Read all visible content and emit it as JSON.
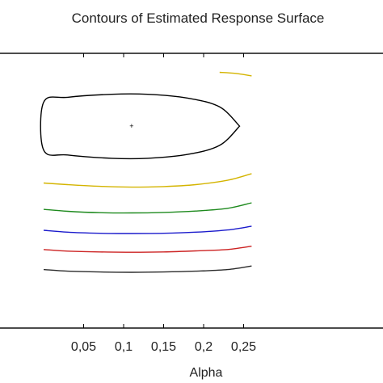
{
  "chart_data": {
    "type": "contour",
    "title": "Contours of Estimated Response Surface",
    "xlabel": "Alpha",
    "ylabel": "",
    "x_ticks": [
      "0,05",
      "0,1",
      "0,15",
      "0,2",
      "0,25"
    ],
    "x_tick_values": [
      0.05,
      0.1,
      0.15,
      0.2,
      0.25
    ],
    "xlim": [
      0.0,
      0.26
    ],
    "ylim": [
      0,
      1
    ],
    "optimum_marker": {
      "x": 0.11,
      "y": 0.735,
      "symbol": "+"
    },
    "contours": [
      {
        "level": 1,
        "color": "#000000",
        "shape": "closed-ellipse",
        "points": [
          [
            0.245,
            0.735
          ],
          [
            0.22,
            0.805
          ],
          [
            0.18,
            0.837
          ],
          [
            0.13,
            0.851
          ],
          [
            0.085,
            0.851
          ],
          [
            0.03,
            0.84
          ],
          [
            0.0,
            0.822
          ],
          [
            0.0,
            0.648
          ],
          [
            0.03,
            0.63
          ],
          [
            0.085,
            0.618
          ],
          [
            0.13,
            0.618
          ],
          [
            0.18,
            0.632
          ],
          [
            0.22,
            0.665
          ],
          [
            0.245,
            0.735
          ]
        ]
      },
      {
        "level": 2,
        "color": "#d4b400",
        "points": [
          [
            0.0,
            0.528
          ],
          [
            0.03,
            0.522
          ],
          [
            0.07,
            0.516
          ],
          [
            0.11,
            0.513
          ],
          [
            0.15,
            0.515
          ],
          [
            0.19,
            0.522
          ],
          [
            0.23,
            0.538
          ],
          [
            0.26,
            0.562
          ]
        ]
      },
      {
        "level": 2,
        "color": "#d4b400",
        "note": "upper-right arc",
        "points": [
          [
            0.22,
            0.931
          ],
          [
            0.24,
            0.927
          ],
          [
            0.26,
            0.918
          ]
        ]
      },
      {
        "level": 3,
        "color": "#1e8a1e",
        "points": [
          [
            0.0,
            0.432
          ],
          [
            0.03,
            0.425
          ],
          [
            0.07,
            0.42
          ],
          [
            0.11,
            0.419
          ],
          [
            0.15,
            0.421
          ],
          [
            0.19,
            0.426
          ],
          [
            0.23,
            0.436
          ],
          [
            0.26,
            0.456
          ]
        ]
      },
      {
        "level": 4,
        "color": "#1a1acc",
        "points": [
          [
            0.0,
            0.356
          ],
          [
            0.03,
            0.349
          ],
          [
            0.07,
            0.345
          ],
          [
            0.11,
            0.344
          ],
          [
            0.15,
            0.345
          ],
          [
            0.19,
            0.349
          ],
          [
            0.23,
            0.357
          ],
          [
            0.26,
            0.371
          ]
        ]
      },
      {
        "level": 5,
        "color": "#cc2222",
        "points": [
          [
            0.0,
            0.286
          ],
          [
            0.03,
            0.28
          ],
          [
            0.07,
            0.277
          ],
          [
            0.11,
            0.276
          ],
          [
            0.15,
            0.277
          ],
          [
            0.19,
            0.281
          ],
          [
            0.23,
            0.286
          ],
          [
            0.26,
            0.298
          ]
        ]
      },
      {
        "level": 6,
        "color": "#2b2b2b",
        "points": [
          [
            0.0,
            0.213
          ],
          [
            0.03,
            0.207
          ],
          [
            0.07,
            0.204
          ],
          [
            0.11,
            0.203
          ],
          [
            0.15,
            0.204
          ],
          [
            0.19,
            0.207
          ],
          [
            0.23,
            0.213
          ],
          [
            0.26,
            0.226
          ]
        ]
      }
    ]
  }
}
